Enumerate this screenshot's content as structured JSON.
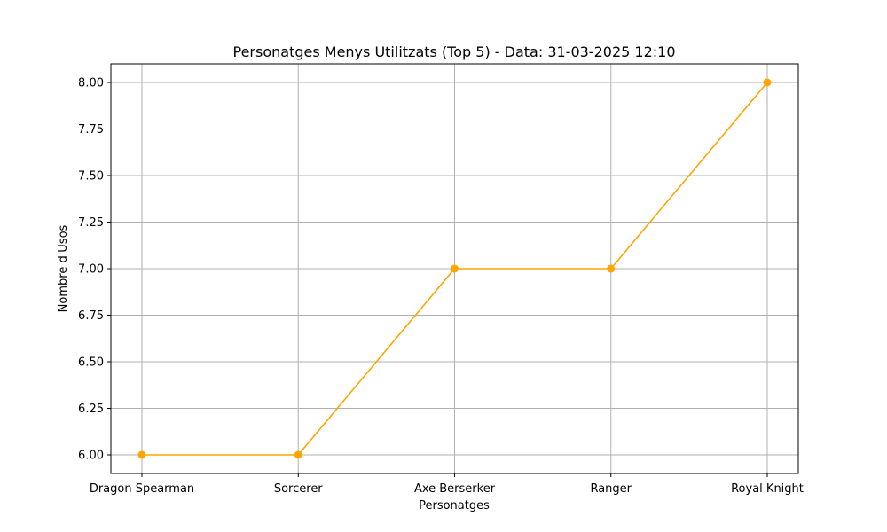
{
  "chart_data": {
    "type": "line",
    "title": "Personatges Menys Utilitzats (Top 5) - Data: 31-03-2025 12:10",
    "xlabel": "Personatges",
    "ylabel": "Nombre d'Usos",
    "categories": [
      "Dragon Spearman",
      "Sorcerer",
      "Axe Berserker",
      "Ranger",
      "Royal Knight"
    ],
    "series": [
      {
        "values": [
          6,
          6,
          7,
          7,
          8
        ],
        "color": "#FFA500",
        "marker": "circle"
      }
    ],
    "ylim": [
      5.9,
      8.1
    ],
    "yticks": [
      6.0,
      6.25,
      6.5,
      6.75,
      7.0,
      7.25,
      7.5,
      7.75,
      8.0
    ],
    "ytick_labels": [
      "6.00",
      "6.25",
      "6.50",
      "6.75",
      "7.00",
      "7.25",
      "7.50",
      "7.75",
      "8.00"
    ],
    "grid": true,
    "grid_color": "#b0b0b0"
  }
}
